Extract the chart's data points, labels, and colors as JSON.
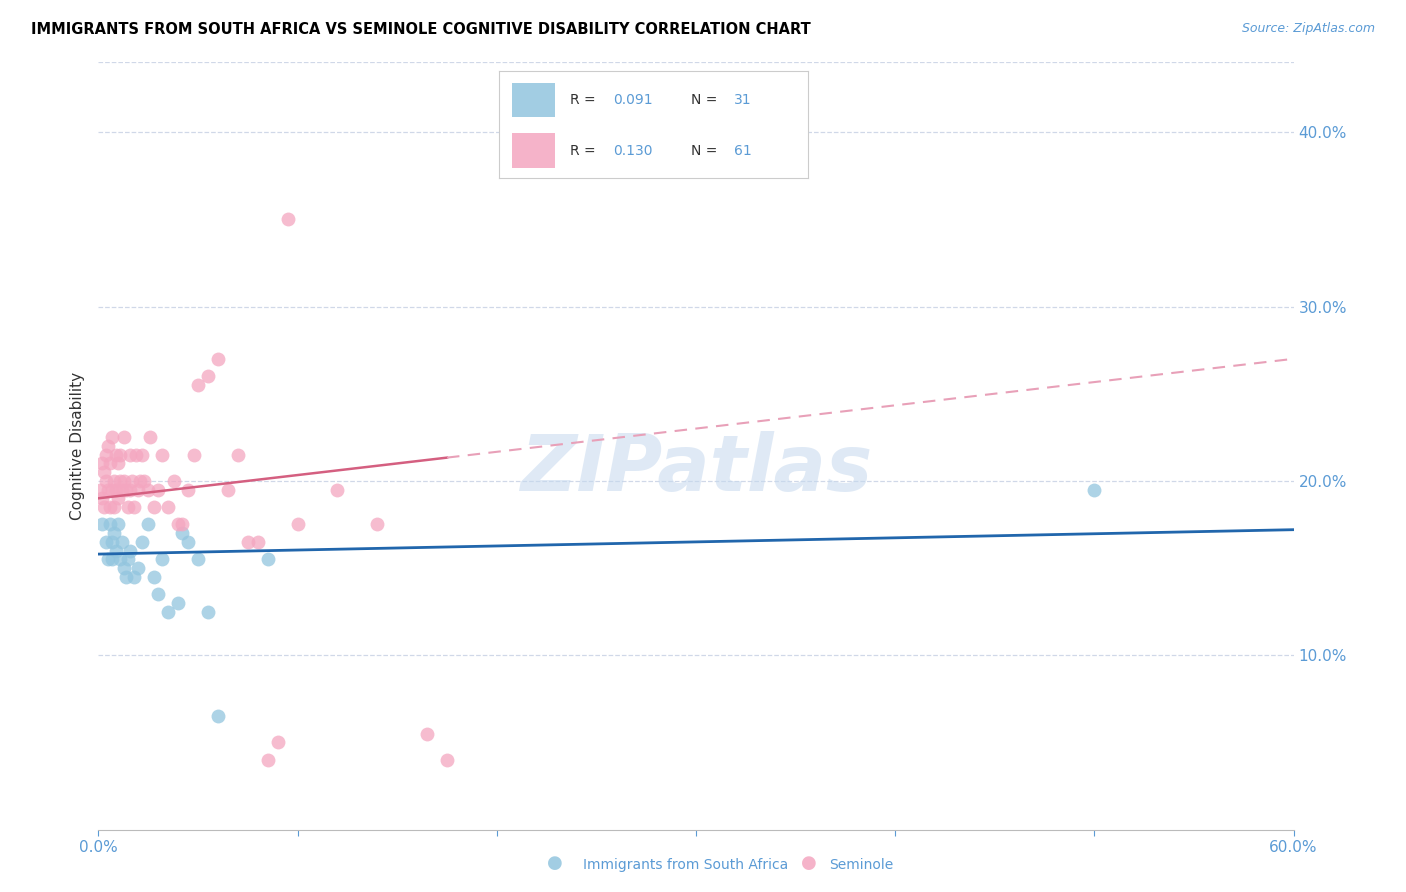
{
  "title": "IMMIGRANTS FROM SOUTH AFRICA VS SEMINOLE COGNITIVE DISABILITY CORRELATION CHART",
  "source": "Source: ZipAtlas.com",
  "ylabel": "Cognitive Disability",
  "xlim": [
    0.0,
    0.6
  ],
  "ylim": [
    0.0,
    0.44
  ],
  "xticks": [
    0.0,
    0.1,
    0.2,
    0.3,
    0.4,
    0.5,
    0.6
  ],
  "xticklabels": [
    "0.0%",
    "",
    "",
    "",
    "",
    "",
    "60.0%"
  ],
  "yticks_right": [
    0.1,
    0.2,
    0.3,
    0.4
  ],
  "ytick_right_labels": [
    "10.0%",
    "20.0%",
    "30.0%",
    "40.0%"
  ],
  "blue_color": "#92c5de",
  "pink_color": "#f4a6c0",
  "trendline_blue_color": "#2166ac",
  "trendline_pink_solid_color": "#d45f80",
  "trendline_pink_dashed_color": "#e8a0b8",
  "axis_color": "#5b9bd5",
  "grid_color": "#d0d8e8",
  "watermark": "ZIPatlas",
  "blue_points_x": [
    0.002,
    0.004,
    0.005,
    0.006,
    0.007,
    0.007,
    0.008,
    0.009,
    0.01,
    0.011,
    0.012,
    0.013,
    0.014,
    0.015,
    0.016,
    0.018,
    0.02,
    0.022,
    0.025,
    0.028,
    0.03,
    0.032,
    0.035,
    0.04,
    0.042,
    0.045,
    0.05,
    0.055,
    0.06,
    0.085,
    0.5
  ],
  "blue_points_y": [
    0.175,
    0.165,
    0.155,
    0.175,
    0.165,
    0.155,
    0.17,
    0.16,
    0.175,
    0.155,
    0.165,
    0.15,
    0.145,
    0.155,
    0.16,
    0.145,
    0.15,
    0.165,
    0.175,
    0.145,
    0.135,
    0.155,
    0.125,
    0.13,
    0.17,
    0.165,
    0.155,
    0.125,
    0.065,
    0.155,
    0.195
  ],
  "pink_points_x": [
    0.001,
    0.002,
    0.002,
    0.003,
    0.003,
    0.004,
    0.004,
    0.005,
    0.005,
    0.006,
    0.006,
    0.007,
    0.007,
    0.008,
    0.008,
    0.009,
    0.009,
    0.01,
    0.01,
    0.011,
    0.011,
    0.012,
    0.013,
    0.013,
    0.014,
    0.015,
    0.016,
    0.016,
    0.017,
    0.018,
    0.019,
    0.02,
    0.021,
    0.022,
    0.023,
    0.025,
    0.026,
    0.028,
    0.03,
    0.032,
    0.035,
    0.038,
    0.04,
    0.042,
    0.045,
    0.048,
    0.05,
    0.055,
    0.06,
    0.065,
    0.07,
    0.075,
    0.08,
    0.085,
    0.09,
    0.095,
    0.1,
    0.12,
    0.14,
    0.165,
    0.175
  ],
  "pink_points_y": [
    0.195,
    0.19,
    0.21,
    0.185,
    0.205,
    0.215,
    0.2,
    0.195,
    0.22,
    0.185,
    0.21,
    0.195,
    0.225,
    0.185,
    0.2,
    0.215,
    0.195,
    0.19,
    0.21,
    0.2,
    0.215,
    0.195,
    0.2,
    0.225,
    0.195,
    0.185,
    0.215,
    0.195,
    0.2,
    0.185,
    0.215,
    0.195,
    0.2,
    0.215,
    0.2,
    0.195,
    0.225,
    0.185,
    0.195,
    0.215,
    0.185,
    0.2,
    0.175,
    0.175,
    0.195,
    0.215,
    0.255,
    0.26,
    0.27,
    0.195,
    0.215,
    0.165,
    0.165,
    0.04,
    0.05,
    0.35,
    0.175,
    0.195,
    0.175,
    0.055,
    0.04
  ],
  "trendline_blue_x0": 0.0,
  "trendline_blue_y0": 0.158,
  "trendline_blue_x1": 0.6,
  "trendline_blue_y1": 0.172,
  "trendline_pink_x0": 0.0,
  "trendline_pink_y0": 0.19,
  "trendline_pink_x1": 0.6,
  "trendline_pink_y1": 0.27,
  "trendline_solid_end": 0.175
}
